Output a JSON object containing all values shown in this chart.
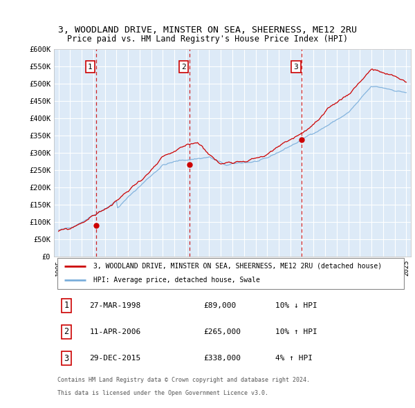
{
  "title1": "3, WOODLAND DRIVE, MINSTER ON SEA, SHEERNESS, ME12 2RU",
  "title2": "Price paid vs. HM Land Registry's House Price Index (HPI)",
  "ylabel_ticks": [
    "£0",
    "£50K",
    "£100K",
    "£150K",
    "£200K",
    "£250K",
    "£300K",
    "£350K",
    "£400K",
    "£450K",
    "£500K",
    "£550K",
    "£600K"
  ],
  "ytick_values": [
    0,
    50000,
    100000,
    150000,
    200000,
    250000,
    300000,
    350000,
    400000,
    450000,
    500000,
    550000,
    600000
  ],
  "sale_dates": [
    "27-MAR-1998",
    "11-APR-2006",
    "29-DEC-2015"
  ],
  "sale_prices": [
    89000,
    265000,
    338000
  ],
  "sale_price_labels": [
    "£89,000",
    "£265,000",
    "£338,000"
  ],
  "sale_hpi_change": [
    "10% ↓ HPI",
    "10% ↑ HPI",
    "4% ↑ HPI"
  ],
  "sale_years": [
    1998.23,
    2006.28,
    2015.99
  ],
  "legend_line1": "3, WOODLAND DRIVE, MINSTER ON SEA, SHEERNESS, ME12 2RU (detached house)",
  "legend_line2": "HPI: Average price, detached house, Swale",
  "footer1": "Contains HM Land Registry data © Crown copyright and database right 2024.",
  "footer2": "This data is licensed under the Open Government Licence v3.0.",
  "line_color_red": "#cc0000",
  "line_color_blue": "#7aaedb",
  "bg_color": "#ddeaf7",
  "grid_color": "#ffffff",
  "dashed_color": "#cc0000",
  "box_color": "#cc0000",
  "xlim_start": 1994.6,
  "xlim_end": 2025.4,
  "ylim_min": 0,
  "ylim_max": 600000
}
